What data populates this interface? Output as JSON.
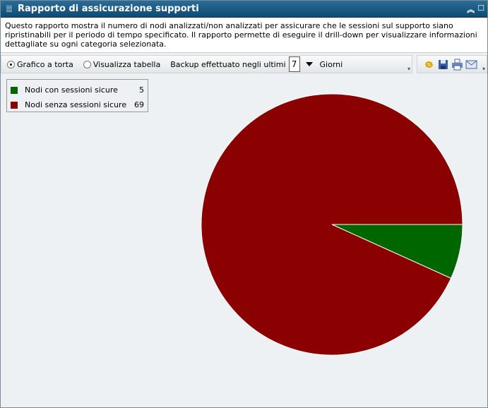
{
  "window": {
    "title": "Rapporto di assicurazione supporti",
    "collapse_icon": "double-chevron-up",
    "maximize_icon": "square"
  },
  "description": "Questo rapporto mostra il numero di nodi analizzati/non analizzati per assicurare che le sessioni sul supporto siano ripristinabili per il periodo di tempo specificato. Il rapporto permette di eseguire il drill-down per visualizzare informazioni dettagliate su ogni categoria selezionata.",
  "toolbar": {
    "pie_option": "Grafico a torta",
    "table_option": "Visualizza tabella",
    "selected": "pie",
    "backup_label": "Backup effettuato negli ultimi",
    "days_value": "7",
    "days_unit": "Giorni",
    "icons": [
      "refresh-icon",
      "save-icon",
      "print-icon",
      "email-icon"
    ]
  },
  "chart_data": {
    "type": "pie",
    "categories": [
      "Nodi con sessioni sicure",
      "Nodi senza sessioni sicure"
    ],
    "values": [
      5,
      69
    ],
    "colors": [
      "#006600",
      "#8b0000"
    ],
    "legend": "top-left"
  }
}
